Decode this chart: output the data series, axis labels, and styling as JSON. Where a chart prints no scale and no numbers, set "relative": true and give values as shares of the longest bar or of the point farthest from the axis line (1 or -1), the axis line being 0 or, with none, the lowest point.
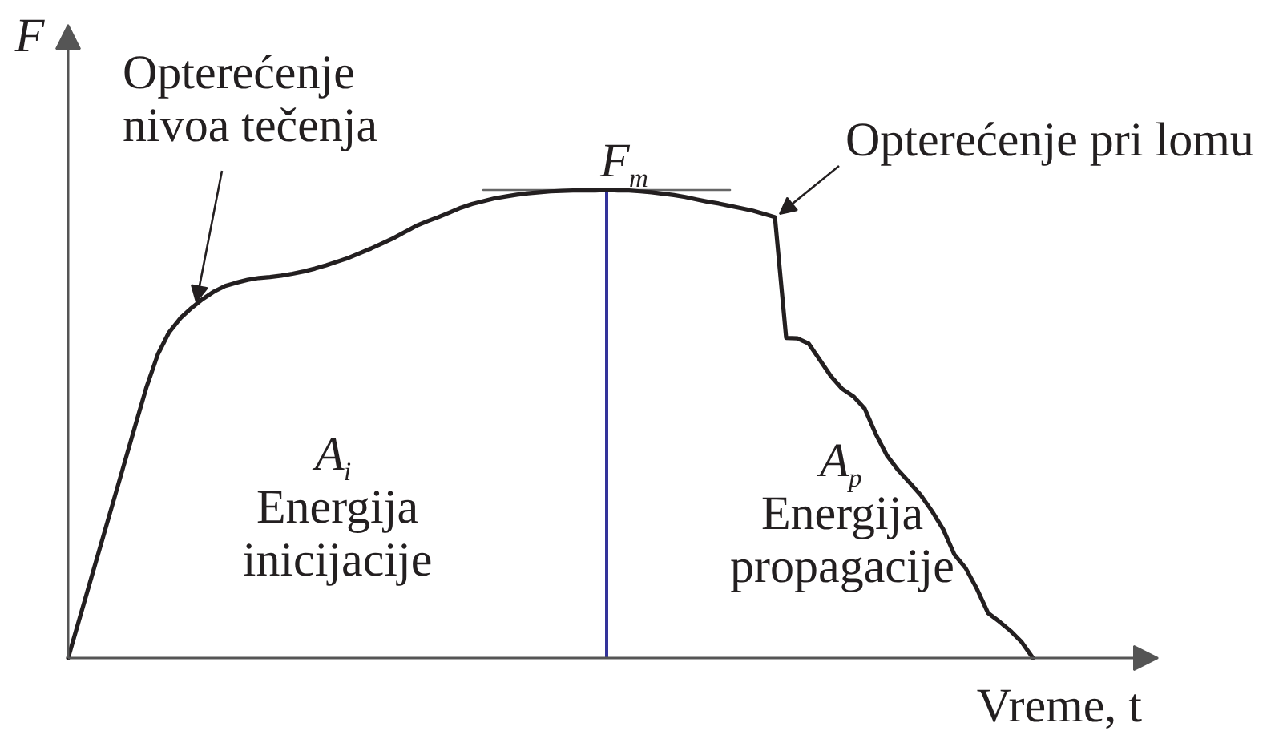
{
  "chart_data": {
    "type": "line",
    "relative": true,
    "xlabel": "Vreme, t",
    "ylabel": "F",
    "categories": [
      null,
      null,
      null,
      null,
      null,
      null,
      null,
      null,
      null,
      null,
      null,
      null,
      null,
      null,
      null,
      null,
      null,
      null,
      null,
      null,
      null,
      null,
      null,
      null,
      null,
      null,
      null,
      null,
      null,
      null,
      null,
      null,
      null,
      null,
      null,
      null,
      null,
      null,
      null,
      null,
      null,
      null,
      null,
      null,
      null,
      null,
      null,
      null,
      null,
      null,
      null,
      null,
      null,
      null,
      null,
      null,
      null,
      null,
      null,
      null,
      null,
      null,
      null,
      null,
      null,
      null,
      null,
      null,
      null,
      null,
      null,
      null,
      null,
      null,
      null,
      null,
      null,
      null,
      null,
      null,
      null,
      null,
      null,
      null,
      null,
      null,
      null,
      null,
      null,
      null,
      null,
      null,
      null,
      null
    ],
    "series": [
      {
        "color": "#231f20",
        "values": [
          0,
          0.083,
          0.166,
          0.249,
          0.332,
          0.415,
          0.498,
          0.58,
          0.649,
          0.696,
          0.726,
          0.748,
          0.767,
          0.783,
          0.795,
          0.802,
          0.808,
          0.812,
          0.814,
          0.817,
          0.821,
          0.826,
          0.832,
          0.839,
          0.847,
          0.855,
          0.865,
          0.875,
          0.886,
          0.897,
          0.91,
          0.923,
          0.933,
          0.942,
          0.952,
          0.962,
          0.97,
          0.976,
          0.982,
          0.986,
          0.99,
          0.993,
          0.995,
          0.997,
          0.998,
          0.999,
          0.999,
          0.999,
          1,
          0.999,
          0.999,
          0.997,
          0.995,
          0.992,
          0.989,
          0.985,
          0.98,
          0.975,
          0.971,
          0.966,
          0.961,
          0.956,
          0.949,
          0.942,
          0.684,
          0.683,
          0.672,
          0.637,
          0.602,
          0.575,
          0.559,
          0.533,
          0.478,
          0.432,
          0.401,
          0.375,
          0.348,
          0.314,
          0.275,
          0.221,
          0.192,
          0.148,
          0.096,
          0.078,
          0.058,
          0.034,
          0,
          null,
          null,
          null,
          null,
          null,
          null,
          null
        ]
      },
      {
        "color": "#666666",
        "values": [
          null,
          null,
          null,
          null,
          null,
          null,
          null,
          null,
          null,
          null,
          null,
          null,
          null,
          null,
          null,
          null,
          null,
          null,
          null,
          null,
          null,
          null,
          null,
          null,
          null,
          null,
          null,
          null,
          null,
          null,
          null,
          null,
          null,
          null,
          null,
          null,
          null,
          1,
          1,
          1,
          1,
          1,
          1,
          1,
          1,
          1,
          1,
          1,
          1,
          1,
          1,
          1,
          1,
          1,
          1,
          1,
          1,
          1,
          1,
          1,
          null,
          null,
          null,
          null,
          null,
          null,
          null,
          null,
          null,
          null,
          null,
          null,
          null,
          null,
          null,
          null,
          null,
          null,
          null,
          null,
          null,
          null,
          null,
          null,
          null,
          null,
          null,
          null,
          null,
          null,
          null,
          null,
          null,
          null
        ]
      }
    ],
    "annotations": [
      "Opterećenje\nnivoa tečenja",
      "F$_{m}$",
      "Opterećenje pri lomu",
      "A$_{i}$\nEnergija\ninicijacije",
      "A$_{p}$\nEnergija\npropagacije"
    ]
  }
}
